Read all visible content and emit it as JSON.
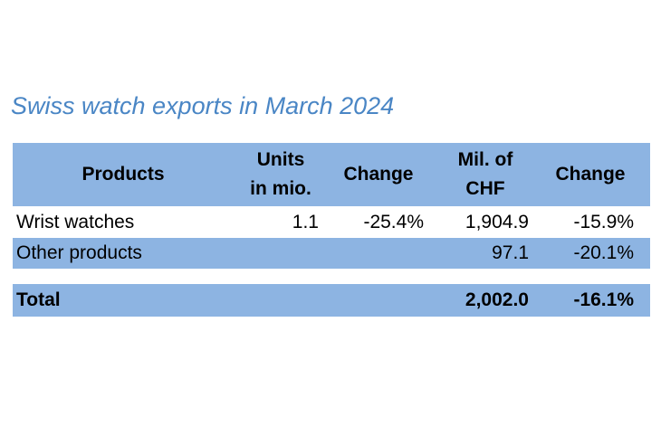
{
  "title": "Swiss watch exports in March 2024",
  "table": {
    "header": [
      [
        "Products"
      ],
      [
        "Units",
        "in mio."
      ],
      [
        "Change"
      ],
      [
        "Mil. of",
        "CHF"
      ],
      [
        "Change"
      ]
    ],
    "rows": [
      [
        "Wrist watches",
        "1.1",
        "-25.4%",
        "1,904.9",
        "-15.9%"
      ],
      [
        "Other products",
        null,
        null,
        "97.1",
        "-20.1%"
      ]
    ],
    "total": [
      "Total",
      null,
      null,
      "2,002.0",
      "-16.1%"
    ]
  }
}
